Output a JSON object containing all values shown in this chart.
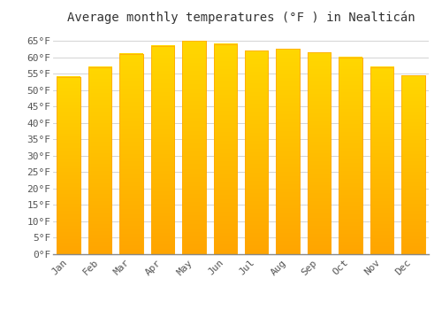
{
  "title": "Average monthly temperatures (°F ) in Nealticán",
  "months": [
    "Jan",
    "Feb",
    "Mar",
    "Apr",
    "May",
    "Jun",
    "Jul",
    "Aug",
    "Sep",
    "Oct",
    "Nov",
    "Dec"
  ],
  "values": [
    54.0,
    57.0,
    61.0,
    63.5,
    65.0,
    64.0,
    62.0,
    62.5,
    61.5,
    60.0,
    57.0,
    54.5
  ],
  "bar_color_top": "#FFD700",
  "bar_color_bottom": "#FFA500",
  "bar_edge_color": "#FFA500",
  "ylim": [
    0,
    68
  ],
  "yticks": [
    0,
    5,
    10,
    15,
    20,
    25,
    30,
    35,
    40,
    45,
    50,
    55,
    60,
    65
  ],
  "background_color": "#ffffff",
  "grid_color": "#cccccc",
  "title_fontsize": 10,
  "tick_fontsize": 8,
  "font_family": "monospace",
  "bar_width": 0.75
}
